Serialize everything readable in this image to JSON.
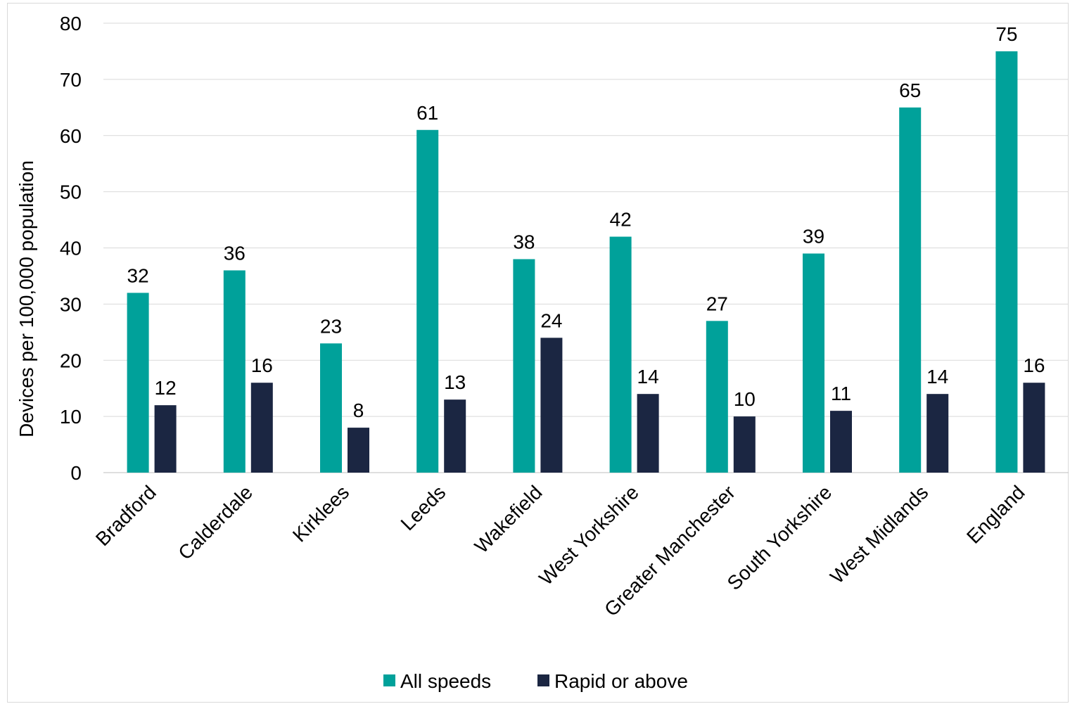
{
  "chart_data": {
    "type": "bar",
    "categories": [
      "Bradford",
      "Calderdale",
      "Kirklees",
      "Leeds",
      "Wakefield",
      "West Yorkshire",
      "Greater Manchester",
      "South Yorkshire",
      "West Midlands",
      "England"
    ],
    "series": [
      {
        "name": "All speeds",
        "color": "#00A19A",
        "values": [
          32,
          36,
          23,
          61,
          38,
          42,
          27,
          39,
          65,
          75
        ]
      },
      {
        "name": "Rapid or above",
        "color": "#1B2642",
        "values": [
          12,
          16,
          8,
          13,
          24,
          14,
          10,
          11,
          14,
          16
        ]
      }
    ],
    "title": "",
    "xlabel": "",
    "ylabel": "Devices per 100,000 population",
    "ylim": [
      0,
      80
    ],
    "yticks": [
      0,
      10,
      20,
      30,
      40,
      50,
      60,
      70,
      80
    ],
    "grid": true,
    "legend": "bottom"
  }
}
